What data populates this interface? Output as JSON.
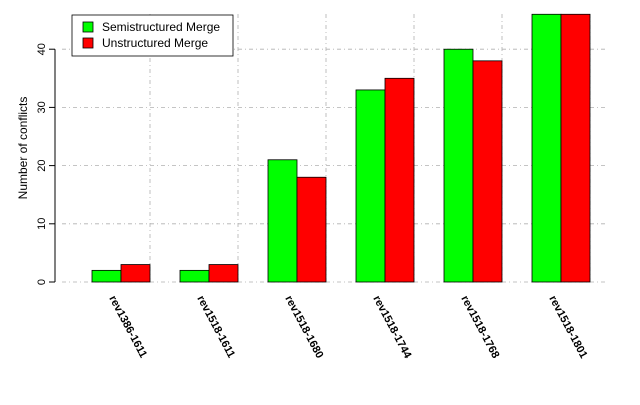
{
  "chart_data": {
    "type": "bar",
    "title": "",
    "xlabel": "",
    "ylabel": "Number of conflicts",
    "categories": [
      "rev1386-1611",
      "rev1518-1611",
      "rev1518-1680",
      "rev1518-1744",
      "rev1518-1768",
      "rev1518-1801"
    ],
    "series": [
      {
        "name": "Semistructured Merge",
        "color": "#00ff00",
        "values": [
          2,
          2,
          21,
          33,
          40,
          46
        ]
      },
      {
        "name": "Unstructured Merge",
        "color": "#ff0000",
        "values": [
          3,
          3,
          18,
          35,
          38,
          46
        ]
      }
    ],
    "ylim": [
      0,
      46
    ],
    "yticks": [
      0,
      10,
      20,
      30,
      40
    ],
    "grid": true,
    "legend_position": "top-left"
  }
}
